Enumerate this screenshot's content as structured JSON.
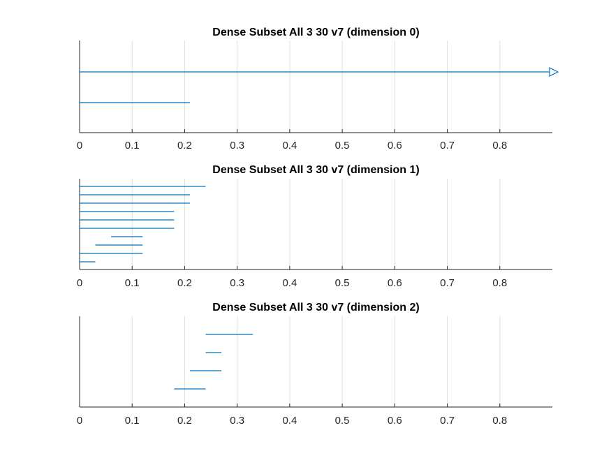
{
  "chart_data": [
    {
      "type": "barcode",
      "title": "Dense Subset All 3 30 v7 (dimension 0)",
      "xlim": [
        0,
        0.9
      ],
      "xticks": [
        "0",
        "0.1",
        "0.2",
        "0.3",
        "0.4",
        "0.5",
        "0.6",
        "0.7",
        "0.8"
      ],
      "grid": true,
      "color": "#0072BD",
      "bars": [
        {
          "start": 0,
          "end": 0.9,
          "infinite": true
        },
        {
          "start": 0,
          "end": 0.21
        }
      ]
    },
    {
      "type": "barcode",
      "title": "Dense Subset All 3 30 v7 (dimension 1)",
      "xlim": [
        0,
        0.9
      ],
      "xticks": [
        "0",
        "0.1",
        "0.2",
        "0.3",
        "0.4",
        "0.5",
        "0.6",
        "0.7",
        "0.8"
      ],
      "grid": true,
      "color": "#0072BD",
      "bars": [
        {
          "start": 0,
          "end": 0.24
        },
        {
          "start": 0,
          "end": 0.21
        },
        {
          "start": 0,
          "end": 0.21
        },
        {
          "start": 0,
          "end": 0.18
        },
        {
          "start": 0,
          "end": 0.18
        },
        {
          "start": 0,
          "end": 0.18
        },
        {
          "start": 0.06,
          "end": 0.12
        },
        {
          "start": 0.03,
          "end": 0.12
        },
        {
          "start": 0,
          "end": 0.12
        },
        {
          "start": 0,
          "end": 0.03
        }
      ]
    },
    {
      "type": "barcode",
      "title": "Dense Subset All 3 30 v7 (dimension 2)",
      "xlim": [
        0,
        0.9
      ],
      "xticks": [
        "0",
        "0.1",
        "0.2",
        "0.3",
        "0.4",
        "0.5",
        "0.6",
        "0.7",
        "0.8"
      ],
      "grid": true,
      "color": "#0072BD",
      "bars": [
        {
          "start": 0.24,
          "end": 0.33
        },
        {
          "start": 0.24,
          "end": 0.27
        },
        {
          "start": 0.21,
          "end": 0.27
        },
        {
          "start": 0.18,
          "end": 0.24
        }
      ]
    }
  ]
}
